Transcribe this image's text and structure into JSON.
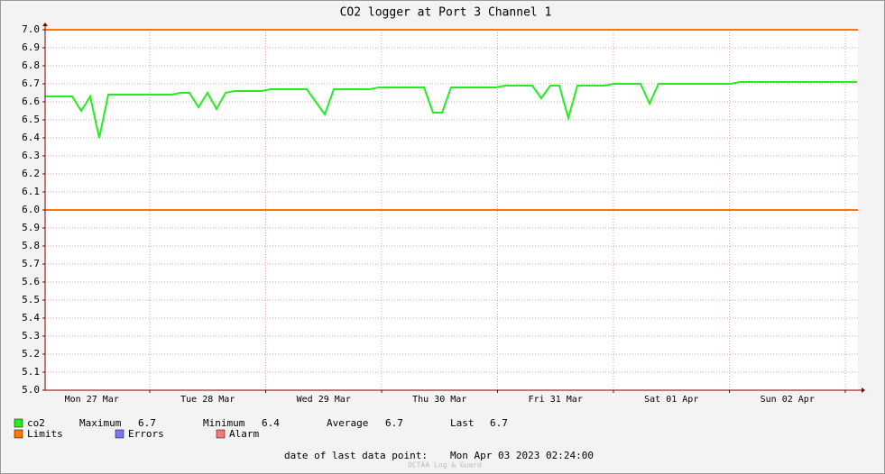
{
  "chart_data": {
    "type": "line",
    "title": "CO2 logger at Port 3 Channel 1",
    "x_labels": [
      "Mon 27 Mar",
      "Tue 28 Mar",
      "Wed 29 Mar",
      "Thu 30 Mar",
      "Fri 31 Mar",
      "Sat 01 Apr",
      "Sun 02 Apr"
    ],
    "series": [
      {
        "name": "co2",
        "color": "#22ee22",
        "values": [
          6.63,
          6.63,
          6.63,
          6.63,
          6.55,
          6.63,
          6.4,
          6.64,
          6.64,
          6.64,
          6.64,
          6.64,
          6.64,
          6.64,
          6.64,
          6.65,
          6.65,
          6.57,
          6.65,
          6.56,
          6.65,
          6.66,
          6.66,
          6.66,
          6.66,
          6.67,
          6.67,
          6.67,
          6.67,
          6.67,
          6.6,
          6.53,
          6.67,
          6.67,
          6.67,
          6.67,
          6.67,
          6.68,
          6.68,
          6.68,
          6.68,
          6.68,
          6.68,
          6.54,
          6.54,
          6.68,
          6.68,
          6.68,
          6.68,
          6.68,
          6.68,
          6.69,
          6.69,
          6.69,
          6.69,
          6.62,
          6.69,
          6.69,
          6.51,
          6.69,
          6.69,
          6.69,
          6.69,
          6.7,
          6.7,
          6.7,
          6.7,
          6.59,
          6.7,
          6.7,
          6.7,
          6.7,
          6.7,
          6.7,
          6.7,
          6.7,
          6.7,
          6.71,
          6.71,
          6.71,
          6.71,
          6.71,
          6.71,
          6.71,
          6.71,
          6.71,
          6.71,
          6.71,
          6.71,
          6.71,
          6.71
        ]
      }
    ],
    "limits": {
      "name": "Limits",
      "color": "#ff7700",
      "values": [
        6,
        7
      ]
    },
    "legend_extra": [
      {
        "name": "Errors",
        "color": "#7777ff"
      },
      {
        "name": "Alarm",
        "color": "#ff7777"
      }
    ],
    "stats": [
      {
        "label": "Maximum",
        "value": 6.7
      },
      {
        "label": "Minimum",
        "value": 6.4
      },
      {
        "label": "Average",
        "value": 6.7
      },
      {
        "label": "Last",
        "value": 6.7
      }
    ],
    "ylim": [
      5,
      7
    ],
    "yticks": [
      {
        "value": 5,
        "label": "5.0"
      },
      5.1,
      5.2,
      5.3,
      5.4,
      5.5,
      5.6,
      5.7,
      5.8,
      5.9,
      {
        "value": 6,
        "label": "6.0"
      },
      6.1,
      6.2,
      6.3,
      6.4,
      6.5,
      6.6,
      6.7,
      6.8,
      6.9,
      {
        "value": 7,
        "label": "7.0"
      }
    ],
    "grid": true,
    "footer_label": "date of last data point:",
    "footer_value": "Mon Apr 03 2023 02:24:00",
    "watermark": "OCTAA Log & Guard"
  }
}
